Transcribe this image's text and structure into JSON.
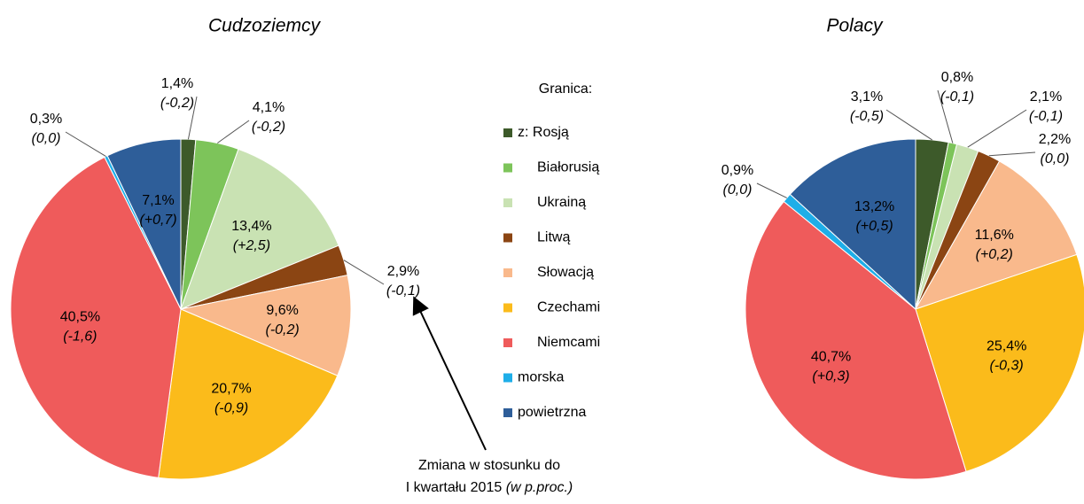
{
  "chart_data": [
    {
      "type": "pie",
      "title": "Cudzoziemcy",
      "categories": [
        "z: Rosją",
        "Białorusią",
        "Ukrainą",
        "Litwą",
        "Słowacją",
        "Czechami",
        "Niemcami",
        "morska",
        "powietrzna"
      ],
      "colors": [
        "#3d5a2a",
        "#7dc45a",
        "#c9e2b3",
        "#8b4513",
        "#f9b98c",
        "#fbbb1b",
        "#ef5b5b",
        "#1eaee8",
        "#2e5e99"
      ],
      "values": [
        1.4,
        4.1,
        13.4,
        2.9,
        9.6,
        20.7,
        40.5,
        0.3,
        7.1
      ],
      "value_labels": [
        "1,4%",
        "4,1%",
        "13,4%",
        "2,9%",
        "9,6%",
        "20,7%",
        "40,5%",
        "0,3%",
        "7,1%"
      ],
      "change_labels": [
        "(-0,2)",
        "(-0,2)",
        "(+2,5)",
        "(-0,1)",
        "(-0,2)",
        "(-0,9)",
        "(-1,6)",
        "(0,0)",
        "(+0,7)"
      ]
    },
    {
      "type": "pie",
      "title": "Polacy",
      "values": [
        3.1,
        0.8,
        2.1,
        2.2,
        11.6,
        25.4,
        40.7,
        0.9,
        13.2
      ],
      "value_labels": [
        "3,1%",
        "0,8%",
        "2,1%",
        "2,2%",
        "11,6%",
        "25,4%",
        "40,7%",
        "0,9%",
        "13,2%"
      ],
      "change_labels": [
        "(-0,5)",
        "(-0,1)",
        "(-0,1)",
        "(0,0)",
        "(+0,2)",
        "(-0,3)",
        "(+0,3)",
        "(0,0)",
        "(+0,5)"
      ]
    }
  ],
  "legend_title": "Granica:",
  "annotation": {
    "text": "Zmiana w stosunku do",
    "line2": "I kwartału 2015 ",
    "line2_italic": "(w p.proc.)"
  }
}
